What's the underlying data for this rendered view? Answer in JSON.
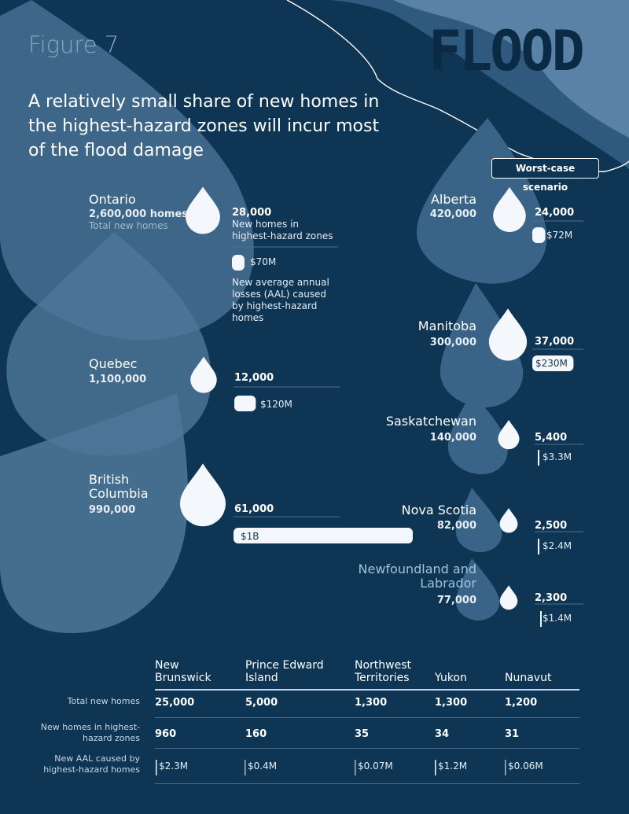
{
  "figure_label": "Figure 7",
  "hazard_word": "FLOOD",
  "headline": "A relatively small share of new homes in the highest-hazard zones will incur most of the flood damage",
  "scenario_label": "Worst-case scenario",
  "colors": {
    "background": "#0e3553",
    "drop": "#f4f8fc",
    "bar": "#f4f8fc",
    "light_shape": "#5a82a6",
    "mid_shape": "#2e5a7d"
  },
  "legend": {
    "total_new_homes": "Total new homes",
    "highest_hazard_homes": "New homes in highest-hazard zones",
    "aal": "New average annual losses (AAL) caused by highest-hazard homes"
  },
  "chart_data": {
    "type": "bar",
    "unit_homes": "homes",
    "provinces": [
      {
        "name": "Ontario",
        "total_homes": 2600000,
        "total_label": "2,600,000 homes",
        "hazard_homes": 28000,
        "hazard_label": "28,000",
        "aal_musd": 70,
        "aal_label": "$70M"
      },
      {
        "name": "Quebec",
        "total_homes": 1100000,
        "total_label": "1,100,000",
        "hazard_homes": 12000,
        "hazard_label": "12,000",
        "aal_musd": 120,
        "aal_label": "$120M"
      },
      {
        "name": "British Columbia",
        "total_homes": 990000,
        "total_label": "990,000",
        "hazard_homes": 61000,
        "hazard_label": "61,000",
        "aal_musd": 1000,
        "aal_label": "$1B"
      },
      {
        "name": "Alberta",
        "total_homes": 420000,
        "total_label": "420,000",
        "hazard_homes": 24000,
        "hazard_label": "24,000",
        "aal_musd": 72,
        "aal_label": "$72M"
      },
      {
        "name": "Manitoba",
        "total_homes": 300000,
        "total_label": "300,000",
        "hazard_homes": 37000,
        "hazard_label": "37,000",
        "aal_musd": 230,
        "aal_label": "$230M"
      },
      {
        "name": "Saskatchewan",
        "total_homes": 140000,
        "total_label": "140,000",
        "hazard_homes": 5400,
        "hazard_label": "5,400",
        "aal_musd": 3.3,
        "aal_label": "$3.3M"
      },
      {
        "name": "Nova Scotia",
        "total_homes": 82000,
        "total_label": "82,000",
        "hazard_homes": 2500,
        "hazard_label": "2,500",
        "aal_musd": 2.4,
        "aal_label": "$2.4M"
      },
      {
        "name": "Newfoundland and Labrador",
        "total_homes": 77000,
        "total_label": "77,000",
        "hazard_homes": 2300,
        "hazard_label": "2,300",
        "aal_musd": 1.4,
        "aal_label": "$1.4M"
      }
    ],
    "table": {
      "row_labels": [
        "Total new homes",
        "New homes in highest-hazard zones",
        "New AAL caused by highest-hazard homes"
      ],
      "columns": [
        {
          "name": "New Brunswick",
          "total_label": "25,000",
          "hazard_label": "960",
          "aal_musd": 2.3,
          "aal_label": "$2.3M"
        },
        {
          "name": "Prince Edward Island",
          "total_label": "5,000",
          "hazard_label": "160",
          "aal_musd": 0.4,
          "aal_label": "$0.4M"
        },
        {
          "name": "Northwest Territories",
          "total_label": "1,300",
          "hazard_label": "35",
          "aal_musd": 0.07,
          "aal_label": "$0.07M"
        },
        {
          "name": "Yukon",
          "total_label": "1,300",
          "hazard_label": "34",
          "aal_musd": 1.2,
          "aal_label": "$1.2M"
        },
        {
          "name": "Nunavut",
          "total_label": "1,200",
          "hazard_label": "31",
          "aal_musd": 0.06,
          "aal_label": "$0.06M"
        }
      ]
    }
  }
}
